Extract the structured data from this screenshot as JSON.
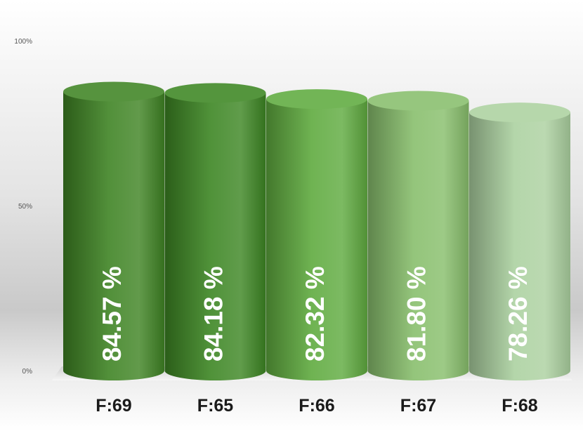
{
  "chart_data": {
    "type": "bar",
    "categories": [
      "F:69",
      "F:65",
      "F:66",
      "F:67",
      "F:68"
    ],
    "values": [
      84.57,
      84.18,
      82.32,
      81.8,
      78.26
    ],
    "value_labels": [
      "84.57 %",
      "84.18 %",
      "82.32 %",
      "81.80 %",
      "78.26 %"
    ],
    "ylim": [
      0,
      100
    ],
    "y_ticks": [
      "0%",
      "50%",
      "100%"
    ],
    "y_tick_values": [
      0,
      50,
      100
    ],
    "grid": false,
    "legend": "none",
    "colors": [
      "#3f8424",
      "#3d8623",
      "#5fab3f",
      "#88be6c",
      "#acd1a0"
    ]
  }
}
